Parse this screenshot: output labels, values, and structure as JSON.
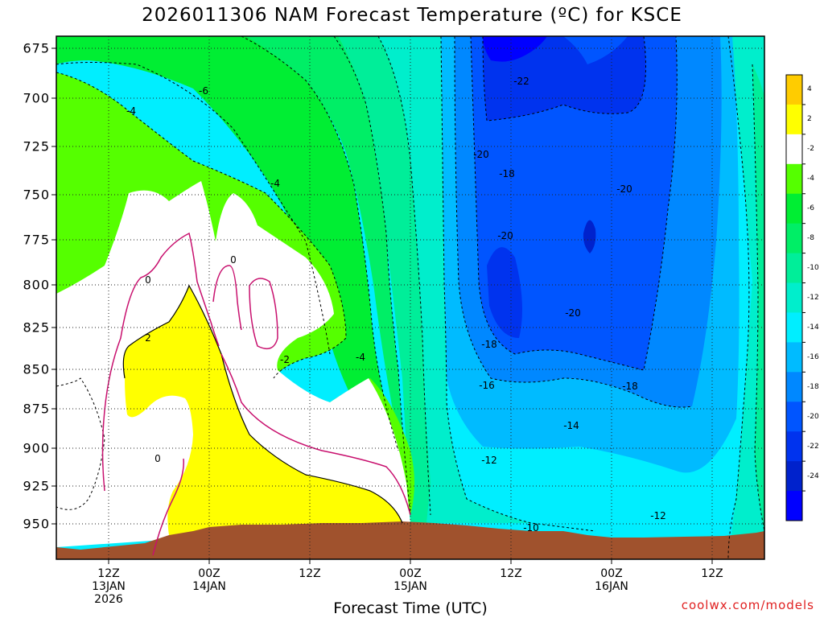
{
  "chart_data": {
    "type": "heatmap",
    "title": "2026011306 NAM Forecast Temperature (ºC) for KSCE",
    "xlabel": "Forecast Time (UTC)",
    "ylabel": "",
    "y_ticks": [
      "675",
      "700",
      "725",
      "750",
      "775",
      "800",
      "825",
      "850",
      "875",
      "900",
      "925",
      "950"
    ],
    "x_ticks": [
      {
        "lines": [
          "12Z",
          "13JAN",
          "2026"
        ]
      },
      {
        "lines": [
          "00Z",
          "14JAN"
        ]
      },
      {
        "lines": [
          "12Z"
        ]
      },
      {
        "lines": [
          "00Z",
          "15JAN"
        ]
      },
      {
        "lines": [
          "12Z"
        ]
      },
      {
        "lines": [
          "00Z",
          "16JAN"
        ]
      },
      {
        "lines": [
          "12Z"
        ]
      }
    ],
    "colorbar_labels": [
      "4",
      "2",
      "-2",
      "-4",
      "-6",
      "-8",
      "-10",
      "-12",
      "-14",
      "-16",
      "-18",
      "-20",
      "-22",
      "-24"
    ],
    "colorbar_colors": [
      "#ffcc00",
      "#ffff00",
      "#ffffff",
      "#55ff00",
      "#00ee33",
      "#00ee66",
      "#00ee99",
      "#00eecc",
      "#00eeff",
      "#00bbff",
      "#0088ff",
      "#0055ff",
      "#0033ee",
      "#0022cc",
      "#0000ff"
    ],
    "contour_labels": [
      "-6",
      "-4",
      "-4",
      "0",
      "0",
      "2",
      "0",
      "-2",
      "-4",
      "-22",
      "-20",
      "-18",
      "-20",
      "-20",
      "-20",
      "-18",
      "-16",
      "-18",
      "-14",
      "-12",
      "-12",
      "-10"
    ],
    "grid": true,
    "legend": "colorbar-right"
  },
  "credit": "coolwx.com/models"
}
